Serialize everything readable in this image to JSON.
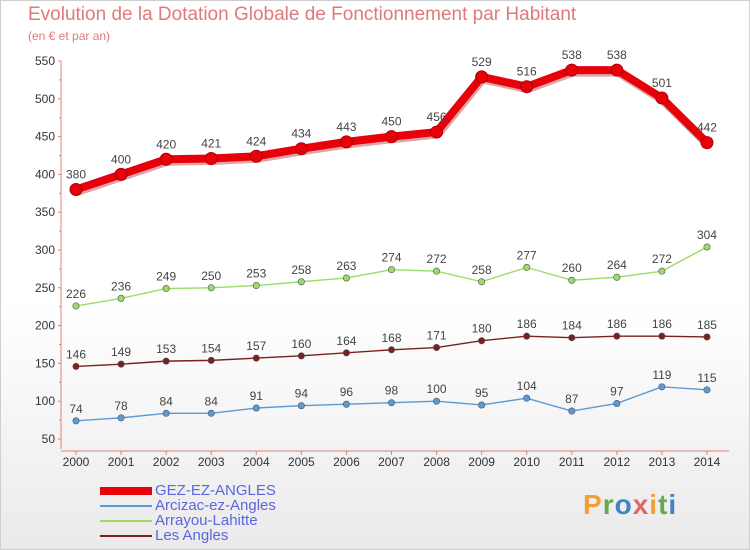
{
  "chart_data": {
    "type": "line",
    "title": "Evolution de la Dotation Globale de Fonctionnement par Habitant",
    "subtitle": "(en € et par an)",
    "categories": [
      "2000",
      "2001",
      "2002",
      "2003",
      "2004",
      "2005",
      "2006",
      "2007",
      "2008",
      "2009",
      "2010",
      "2011",
      "2012",
      "2013",
      "2014"
    ],
    "ylim": [
      50,
      550
    ],
    "yticks": [
      "550",
      "500",
      "450",
      "400",
      "350",
      "300",
      "250",
      "200",
      "150",
      "100",
      "50"
    ],
    "grid": false,
    "legend_position": "bottom-left",
    "series": [
      {
        "name": "GEZ-EZ-ANGLES",
        "color": "#e8000b",
        "values": [
          380,
          400,
          420,
          421,
          424,
          434,
          443,
          450,
          456,
          529,
          516,
          538,
          538,
          501,
          442
        ]
      },
      {
        "name": "Arcizac-ez-Angles",
        "color": "#5b9bd5",
        "values": [
          74,
          78,
          84,
          84,
          91,
          94,
          96,
          98,
          100,
          95,
          104,
          87,
          97,
          119,
          115
        ]
      },
      {
        "name": "Arrayou-Lahitte",
        "color": "#99dd66",
        "values": [
          226,
          236,
          249,
          250,
          253,
          258,
          263,
          274,
          272,
          258,
          277,
          260,
          264,
          272,
          304
        ]
      },
      {
        "name": "Les Angles",
        "color": "#7a2020",
        "values": [
          146,
          149,
          153,
          154,
          157,
          160,
          164,
          168,
          171,
          180,
          186,
          184,
          186,
          186,
          185
        ]
      }
    ]
  },
  "logo": {
    "letters": [
      {
        "ch": "P",
        "color": "#f2a033"
      },
      {
        "ch": "r",
        "color": "#6aa84f"
      },
      {
        "ch": "o",
        "color": "#3d85c6"
      },
      {
        "ch": "x",
        "color": "#e06666"
      },
      {
        "ch": "i",
        "color": "#f2a033"
      },
      {
        "ch": "t",
        "color": "#6aa84f"
      },
      {
        "ch": "i",
        "color": "#3d85c6"
      }
    ]
  }
}
